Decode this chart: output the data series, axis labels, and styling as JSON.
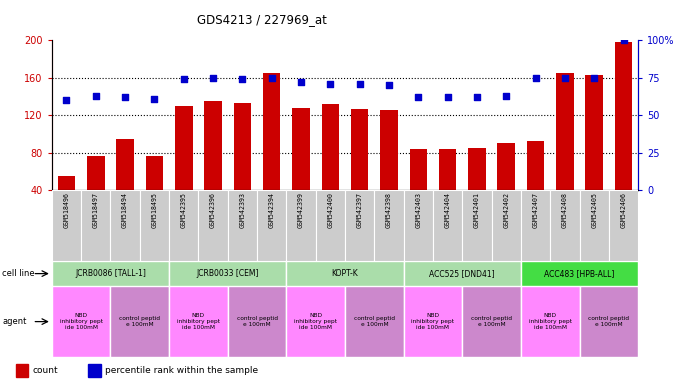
{
  "title": "GDS4213 / 227969_at",
  "samples": [
    "GSM518496",
    "GSM518497",
    "GSM518494",
    "GSM518495",
    "GSM542395",
    "GSM542396",
    "GSM542393",
    "GSM542394",
    "GSM542399",
    "GSM542400",
    "GSM542397",
    "GSM542398",
    "GSM542403",
    "GSM542404",
    "GSM542401",
    "GSM542402",
    "GSM542407",
    "GSM542408",
    "GSM542405",
    "GSM542406"
  ],
  "counts": [
    55,
    76,
    95,
    76,
    130,
    135,
    133,
    165,
    128,
    132,
    127,
    126,
    84,
    84,
    85,
    90,
    92,
    165,
    163,
    198
  ],
  "percentiles": [
    60,
    63,
    62,
    61,
    74,
    75,
    74,
    75,
    72,
    71,
    71,
    70,
    62,
    62,
    62,
    63,
    75,
    75,
    75,
    100
  ],
  "cell_lines": [
    {
      "label": "JCRB0086 [TALL-1]",
      "start": 0,
      "end": 4,
      "color": "#aaddaa"
    },
    {
      "label": "JCRB0033 [CEM]",
      "start": 4,
      "end": 8,
      "color": "#aaddaa"
    },
    {
      "label": "KOPT-K",
      "start": 8,
      "end": 12,
      "color": "#aaddaa"
    },
    {
      "label": "ACC525 [DND41]",
      "start": 12,
      "end": 16,
      "color": "#aaddaa"
    },
    {
      "label": "ACC483 [HPB-ALL]",
      "start": 16,
      "end": 20,
      "color": "#44dd44"
    }
  ],
  "agents": [
    {
      "label": "NBD\ninhibitory pept\nide 100mM",
      "start": 0,
      "end": 2,
      "color": "#ff88ff"
    },
    {
      "label": "control peptid\ne 100mM",
      "start": 2,
      "end": 4,
      "color": "#cc88cc"
    },
    {
      "label": "NBD\ninhibitory pept\nide 100mM",
      "start": 4,
      "end": 6,
      "color": "#ff88ff"
    },
    {
      "label": "control peptid\ne 100mM",
      "start": 6,
      "end": 8,
      "color": "#cc88cc"
    },
    {
      "label": "NBD\ninhibitory pept\nide 100mM",
      "start": 8,
      "end": 10,
      "color": "#ff88ff"
    },
    {
      "label": "control peptid\ne 100mM",
      "start": 10,
      "end": 12,
      "color": "#cc88cc"
    },
    {
      "label": "NBD\ninhibitory pept\nide 100mM",
      "start": 12,
      "end": 14,
      "color": "#ff88ff"
    },
    {
      "label": "control peptid\ne 100mM",
      "start": 14,
      "end": 16,
      "color": "#cc88cc"
    },
    {
      "label": "NBD\ninhibitory pept\nide 100mM",
      "start": 16,
      "end": 18,
      "color": "#ff88ff"
    },
    {
      "label": "control peptid\ne 100mM",
      "start": 18,
      "end": 20,
      "color": "#cc88cc"
    }
  ],
  "ylim_left": [
    40,
    200
  ],
  "ylim_right": [
    0,
    100
  ],
  "yticks_left": [
    40,
    80,
    120,
    160,
    200
  ],
  "yticks_right": [
    0,
    25,
    50,
    75,
    100
  ],
  "bar_color": "#cc0000",
  "scatter_color": "#0000cc",
  "background_color": "#ffffff"
}
